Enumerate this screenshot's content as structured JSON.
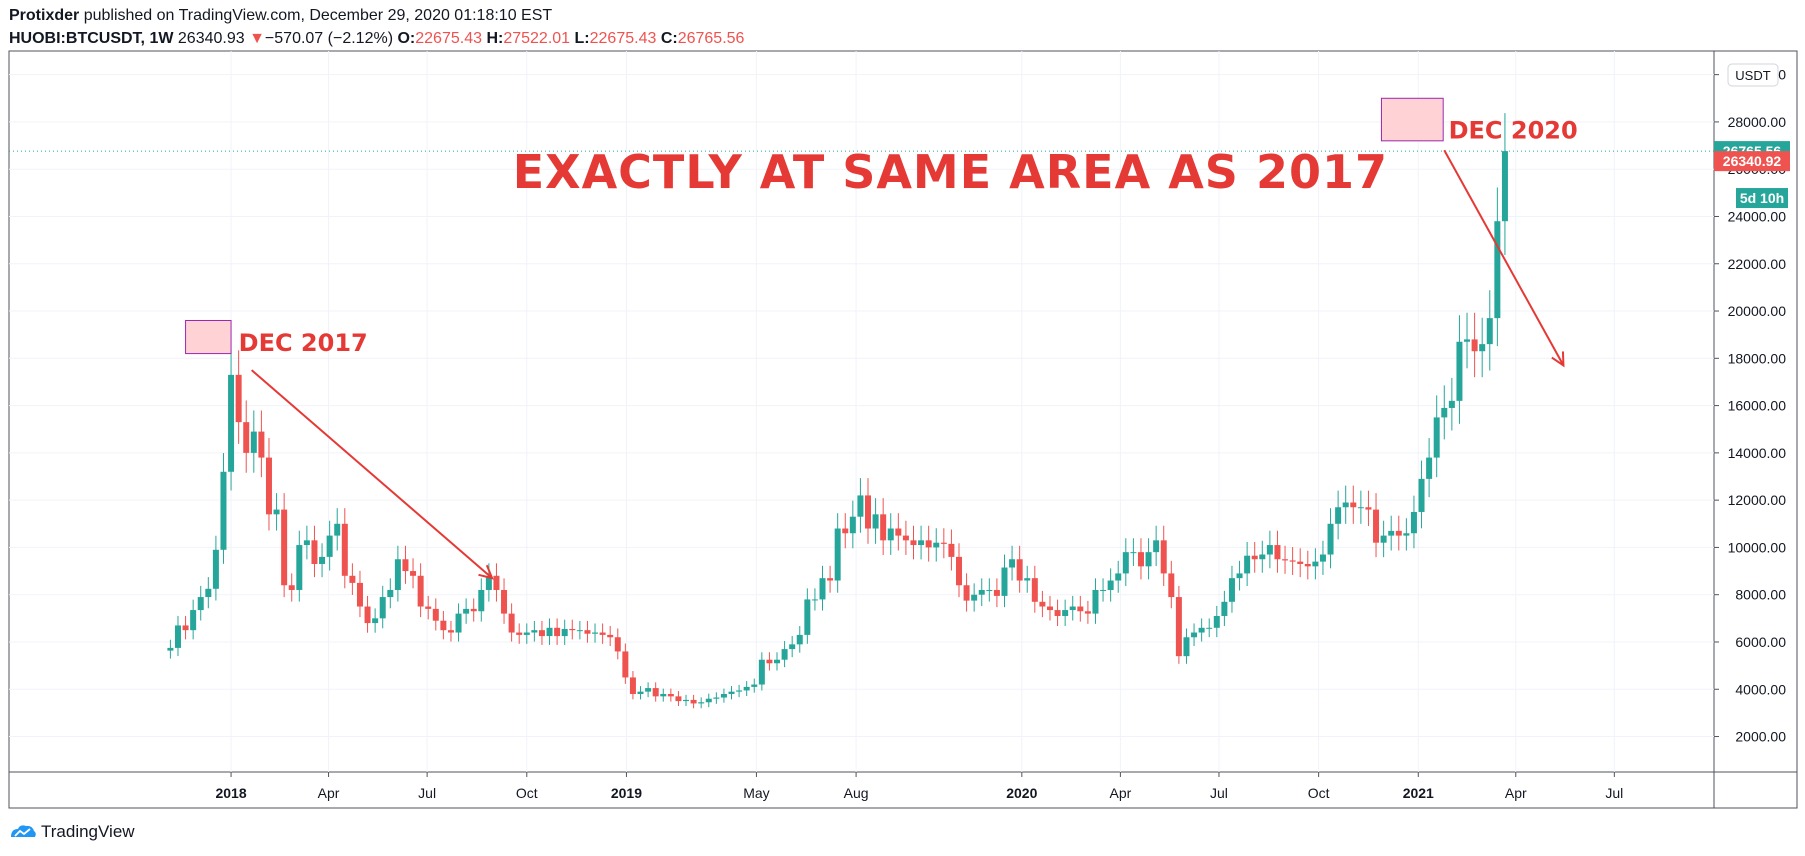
{
  "header": {
    "author": "Protixder",
    "published_text": "published on TradingView.com, December 29, 2020 01:18:10 EST",
    "symbol": "HUOBI:BTCUSDT, 1W",
    "last_price": "26340.93",
    "change_arrow": "▼",
    "change_text": "−570.07 (−2.12%)",
    "o_label": "O:",
    "o_value": "22675.43",
    "h_label": "H:",
    "h_value": "27522.01",
    "l_label": "L:",
    "l_value": "22675.43",
    "c_label": "C:",
    "c_value": "26765.56"
  },
  "footer": {
    "brand": "TradingView"
  },
  "colors": {
    "up": "#26a69a",
    "down": "#ef5350",
    "annotation": "#e53935",
    "highlight_fill": "#ffcdd2",
    "highlight_border": "#9c27b0"
  },
  "chart_data": {
    "type": "candlestick",
    "currency_label": "USDT",
    "ylim": [
      500,
      31000
    ],
    "yticks": [
      "2000.00",
      "4000.00",
      "6000.00",
      "8000.00",
      "10000.00",
      "12000.00",
      "14000.00",
      "16000.00",
      "18000.00",
      "20000.00",
      "22000.00",
      "24000.00",
      "26000.00",
      "28000.00",
      "30000.00"
    ],
    "xticks": [
      {
        "label": "2018",
        "date": "2018-01-01",
        "bold": true
      },
      {
        "label": "Apr",
        "date": "2018-04-01",
        "bold": false
      },
      {
        "label": "Jul",
        "date": "2018-07-01",
        "bold": false
      },
      {
        "label": "Oct",
        "date": "2018-10-01",
        "bold": false
      },
      {
        "label": "2019",
        "date": "2019-01-01",
        "bold": true
      },
      {
        "label": "May",
        "date": "2019-05-01",
        "bold": false
      },
      {
        "label": "Aug",
        "date": "2019-08-01",
        "bold": false
      },
      {
        "label": "2020",
        "date": "2020-01-01",
        "bold": true
      },
      {
        "label": "Apr",
        "date": "2020-04-01",
        "bold": false
      },
      {
        "label": "Jul",
        "date": "2020-07-01",
        "bold": false
      },
      {
        "label": "Oct",
        "date": "2020-10-01",
        "bold": false
      },
      {
        "label": "2021",
        "date": "2021-01-01",
        "bold": true
      },
      {
        "label": "Apr",
        "date": "2021-04-01",
        "bold": false
      },
      {
        "label": "Jul",
        "date": "2021-07-01",
        "bold": false
      }
    ],
    "xrange": [
      "2017-06-10",
      "2021-10-01"
    ],
    "price_labels": [
      {
        "value": 26765.56,
        "text": "26765.56",
        "color": "#26a69a"
      },
      {
        "value": 24780,
        "text": "5d 10h",
        "color": "#26a69a"
      },
      {
        "value": 26340.92,
        "text": "26340.92",
        "color": "#ef5350"
      }
    ],
    "current_price_line": 26765.56,
    "closes": [
      5750,
      6700,
      6500,
      7350,
      7900,
      8250,
      9900,
      13200,
      17300,
      15300,
      14000,
      14900,
      13800,
      11400,
      11600,
      8400,
      8200,
      10100,
      10300,
      9300,
      9600,
      10500,
      11000,
      8800,
      8500,
      7500,
      6800,
      7000,
      7900,
      8200,
      9500,
      9000,
      8800,
      7500,
      7400,
      6900,
      6500,
      6400,
      7200,
      7400,
      7300,
      8200,
      8800,
      8200,
      7200,
      6400,
      6300,
      6400,
      6500,
      6250,
      6600,
      6250,
      6550,
      6500,
      6500,
      6350,
      6400,
      6300,
      6200,
      5600,
      4500,
      3800,
      3900,
      4050,
      3700,
      3800,
      3700,
      3500,
      3550,
      3400,
      3450,
      3600,
      3650,
      3800,
      3900,
      3950,
      4100,
      4200,
      5250,
      5100,
      5250,
      5700,
      5900,
      6300,
      7800,
      7800,
      8700,
      8600,
      10800,
      10600,
      11300,
      12200,
      10800,
      11400,
      10300,
      10800,
      10500,
      10300,
      10100,
      10300,
      10000,
      10200,
      10150,
      9600,
      8400,
      7750,
      8000,
      8200,
      8200,
      7950,
      9150,
      9500,
      8600,
      8700,
      7700,
      7500,
      7350,
      7100,
      7350,
      7500,
      7300,
      7200,
      8200,
      8200,
      8600,
      8900,
      9800,
      9800,
      9200,
      9800,
      10300,
      8900,
      7900,
      5400,
      6200,
      6400,
      6600,
      6600,
      7100,
      7700,
      8700,
      8900,
      9650,
      9500,
      9700,
      10100,
      9500,
      9450,
      9400,
      9300,
      9200,
      9400,
      9700,
      11000,
      11700,
      11900,
      11700,
      11700,
      11600,
      10200,
      10500,
      10700,
      10500,
      10600,
      11500,
      12900,
      13800,
      15500,
      15900,
      16200,
      18700,
      18800,
      18300,
      18600,
      19700,
      23800,
      26765
    ],
    "annotations": [
      {
        "text": "EXACTLY AT SAME AREA AS 2017",
        "type": "title"
      },
      {
        "text": "DEC 2017",
        "type": "label"
      },
      {
        "text": "DEC 2020",
        "type": "label"
      }
    ]
  }
}
